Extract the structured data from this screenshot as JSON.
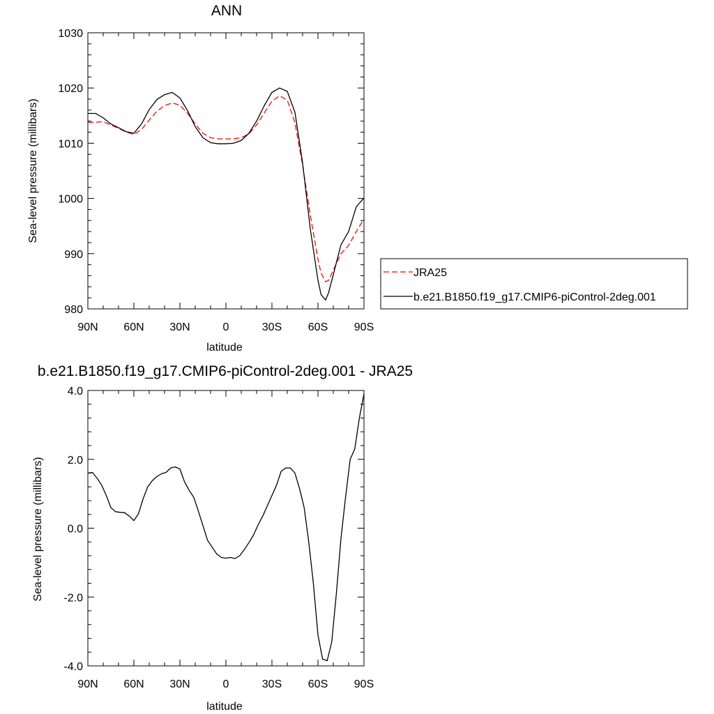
{
  "chart_data": [
    {
      "type": "line",
      "title": "ANN",
      "xlabel": "latitude",
      "ylabel": "Sea-level pressure (millibars)",
      "xlim": [
        90,
        -90
      ],
      "ylim": [
        980,
        1030
      ],
      "xticks": [
        90,
        60,
        30,
        0,
        -30,
        -60,
        -90
      ],
      "xtick_labels": [
        "90N",
        "60N",
        "30N",
        "0",
        "30S",
        "60S",
        "90S"
      ],
      "yticks": [
        980,
        990,
        1000,
        1010,
        1020,
        1030
      ],
      "ytick_labels": [
        "980",
        "990",
        "1000",
        "1010",
        "1020",
        "1030"
      ],
      "legend_position": "right, outside plot",
      "series": [
        {
          "name": "JRA25",
          "color": "#ff0000",
          "dash": "dashed",
          "x": [
            90,
            85,
            80,
            75,
            70,
            65,
            60,
            55,
            50,
            45,
            40,
            35,
            30,
            25,
            20,
            15,
            10,
            5,
            0,
            -5,
            -10,
            -15,
            -20,
            -25,
            -30,
            -35,
            -40,
            -45,
            -50,
            -55,
            -60,
            -62,
            -65,
            -67,
            -70,
            -75,
            -80,
            -85,
            -90
          ],
          "values": [
            1013.8,
            1013.8,
            1013.9,
            1013.3,
            1012.7,
            1012.0,
            1011.6,
            1012.5,
            1014.2,
            1015.8,
            1016.8,
            1017.3,
            1016.9,
            1015.4,
            1013.5,
            1011.8,
            1011.0,
            1010.8,
            1010.8,
            1010.8,
            1011.0,
            1011.7,
            1013.3,
            1015.5,
            1017.6,
            1018.6,
            1017.8,
            1013.7,
            1006.0,
            997.0,
            989.0,
            986.5,
            984.9,
            985.2,
            987.0,
            990.0,
            991.5,
            994.0,
            996.3
          ]
        },
        {
          "name": "b.e21.B1850.f19_g17.CMIP6-piControl-2deg.001",
          "color": "#000000",
          "dash": "solid",
          "x": [
            90,
            85,
            80,
            75,
            70,
            65,
            60,
            55,
            50,
            45,
            40,
            35,
            30,
            25,
            20,
            15,
            10,
            5,
            0,
            -5,
            -10,
            -15,
            -20,
            -25,
            -30,
            -35,
            -40,
            -45,
            -50,
            -55,
            -60,
            -62,
            -65,
            -67,
            -70,
            -75,
            -80,
            -85,
            -90
          ],
          "values": [
            1015.4,
            1015.4,
            1014.6,
            1013.5,
            1012.8,
            1012.1,
            1011.8,
            1013.5,
            1016.1,
            1017.9,
            1018.8,
            1019.2,
            1018.2,
            1015.9,
            1013.0,
            1011.0,
            1010.1,
            1009.9,
            1009.9,
            1010.0,
            1010.5,
            1011.8,
            1014.0,
            1016.8,
            1019.2,
            1020.0,
            1019.4,
            1015.6,
            1006.4,
            994.5,
            985.2,
            982.6,
            981.6,
            983.0,
            986.2,
            991.6,
            994.0,
            998.5,
            1000.1
          ]
        }
      ]
    },
    {
      "type": "line",
      "title": "b.e21.B1850.f19_g17.CMIP6-piControl-2deg.001 - JRA25",
      "xlabel": "latitude",
      "ylabel": "Sea-level pressure (millibars)",
      "xlim": [
        90,
        -90
      ],
      "ylim": [
        -4,
        4
      ],
      "xticks": [
        90,
        60,
        30,
        0,
        -30,
        -60,
        -90
      ],
      "xtick_labels": [
        "90N",
        "60N",
        "30N",
        "0",
        "30S",
        "60S",
        "90S"
      ],
      "yticks": [
        -4,
        -2,
        0,
        2,
        4
      ],
      "ytick_labels": [
        "-4.0",
        "-2.0",
        "0.0",
        "2.0",
        "4.0"
      ],
      "series": [
        {
          "color": "#000000",
          "dash": "solid",
          "x": [
            90,
            87,
            84,
            81,
            78,
            75,
            72,
            69,
            66,
            63,
            60,
            57,
            54,
            51,
            48,
            45,
            42,
            39,
            36,
            33,
            30,
            27,
            24,
            21,
            18,
            15,
            12,
            9,
            6,
            3,
            0,
            -3,
            -6,
            -9,
            -12,
            -15,
            -18,
            -21,
            -24,
            -27,
            -30,
            -33,
            -36,
            -39,
            -42,
            -45,
            -48,
            -51,
            -54,
            -57,
            -60,
            -63,
            -66,
            -69,
            -72,
            -75,
            -78,
            -81,
            -84,
            -87,
            -90
          ],
          "values": [
            1.6,
            1.62,
            1.45,
            1.25,
            0.95,
            0.6,
            0.48,
            0.46,
            0.45,
            0.35,
            0.22,
            0.42,
            0.85,
            1.2,
            1.38,
            1.5,
            1.58,
            1.62,
            1.75,
            1.78,
            1.72,
            1.35,
            1.1,
            0.9,
            0.5,
            0.08,
            -0.35,
            -0.55,
            -0.75,
            -0.85,
            -0.87,
            -0.85,
            -0.88,
            -0.8,
            -0.62,
            -0.42,
            -0.2,
            0.1,
            0.35,
            0.65,
            0.95,
            1.25,
            1.65,
            1.75,
            1.75,
            1.6,
            1.15,
            0.6,
            -0.4,
            -1.6,
            -3.1,
            -3.8,
            -3.85,
            -3.3,
            -1.9,
            -0.3,
            0.9,
            2.0,
            2.3,
            3.2,
            3.9
          ]
        }
      ]
    }
  ]
}
